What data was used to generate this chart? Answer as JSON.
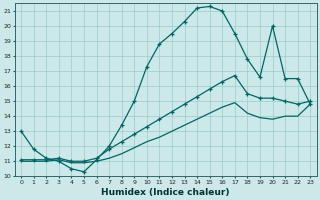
{
  "title": "",
  "xlabel": "Humidex (Indice chaleur)",
  "background_color": "#cce8e8",
  "line_color": "#006666",
  "xlim": [
    -0.5,
    23.5
  ],
  "ylim": [
    10,
    21.5
  ],
  "xticks": [
    0,
    1,
    2,
    3,
    4,
    5,
    6,
    7,
    8,
    9,
    10,
    11,
    12,
    13,
    14,
    15,
    16,
    17,
    18,
    19,
    20,
    21,
    22,
    23
  ],
  "yticks": [
    10,
    11,
    12,
    13,
    14,
    15,
    16,
    17,
    18,
    19,
    20,
    21
  ],
  "curve1_x": [
    0,
    1,
    2,
    3,
    4,
    5,
    6,
    7,
    8,
    9,
    10,
    11,
    12,
    13,
    14,
    15,
    16,
    17,
    18,
    19,
    20,
    21,
    22,
    23
  ],
  "curve1_y": [
    13.0,
    11.8,
    11.2,
    11.0,
    10.5,
    10.3,
    11.1,
    12.0,
    13.4,
    15.0,
    17.3,
    18.8,
    19.5,
    20.3,
    21.2,
    21.3,
    21.0,
    19.5,
    17.8,
    16.6,
    20.0,
    16.5,
    16.5,
    14.8
  ],
  "curve2_x": [
    0,
    1,
    2,
    3,
    4,
    5,
    6,
    7,
    8,
    9,
    10,
    11,
    12,
    13,
    14,
    15,
    16,
    17,
    18,
    19,
    20,
    21,
    22,
    23
  ],
  "curve2_y": [
    11.1,
    11.1,
    11.1,
    11.2,
    11.0,
    11.0,
    11.2,
    11.8,
    12.3,
    12.8,
    13.3,
    13.8,
    14.3,
    14.8,
    15.3,
    15.8,
    16.3,
    16.7,
    15.5,
    15.2,
    15.2,
    15.0,
    14.8,
    15.0
  ],
  "curve3_x": [
    0,
    1,
    2,
    3,
    4,
    5,
    6,
    7,
    8,
    9,
    10,
    11,
    12,
    13,
    14,
    15,
    16,
    17,
    18,
    19,
    20,
    21,
    22,
    23
  ],
  "curve3_y": [
    11.0,
    11.0,
    11.0,
    11.1,
    10.9,
    10.9,
    11.0,
    11.2,
    11.5,
    11.9,
    12.3,
    12.6,
    13.0,
    13.4,
    13.8,
    14.2,
    14.6,
    14.9,
    14.2,
    13.9,
    13.8,
    14.0,
    14.0,
    14.8
  ]
}
